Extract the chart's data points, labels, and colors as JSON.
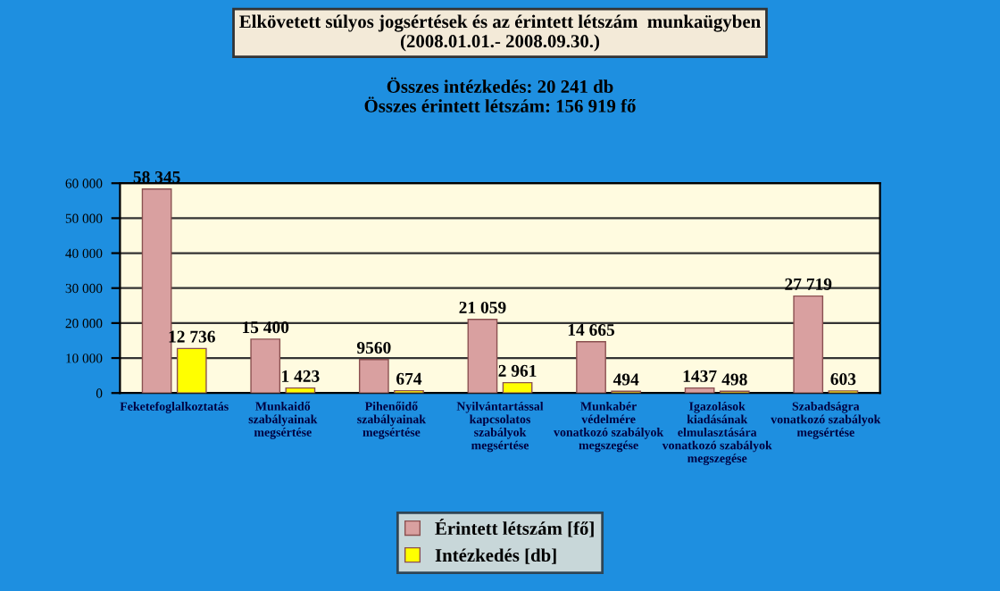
{
  "chart_data": {
    "type": "bar",
    "title": "Elkövetett súlyos jogsértések és az érintett létszám  munkaügyben\n(2008.01.01.- 2008.09.30.)",
    "subtitle": "Összes intézkedés: 20 241 db\nÖsszes érintett létszám: 156 919 fő",
    "categories": [
      "Feketefoglalkoztatás",
      "Munkaidő\nszabályainak\nmegsértése",
      "Pihenőidő\nszabályainak\nmegsértése",
      "Nyilvántartással\nkapcsolatos\nszabályok\nmegsértése",
      "Munkabér\nvédelmére\nvonatkozó szabályok\nmegszegése",
      "Igazolások\nkiadásának\nelmulasztására\nvonatkozó szabályok\nmegszegése",
      "Szabadságra\nvonatkozó szabályok\nmegsértése"
    ],
    "series": [
      {
        "name": "Érintett létszám [fő]",
        "color": "#d9a0a0",
        "values": [
          58345,
          15400,
          9560,
          21059,
          14665,
          1437,
          27719
        ],
        "value_labels": [
          "58 345",
          "15 400",
          "9560",
          "21 059",
          "14 665",
          "1437",
          "27 719"
        ]
      },
      {
        "name": "Intézkedés [db]",
        "color": "#ffff00",
        "values": [
          12736,
          1423,
          674,
          2961,
          494,
          498,
          603
        ],
        "value_labels": [
          "12 736",
          "1 423",
          "674",
          "2 961",
          "494",
          "498",
          "603"
        ]
      }
    ],
    "ylim": [
      0,
      60000
    ],
    "yticks": [
      0,
      {
        "value": 10000,
        "label": "10 000"
      },
      {
        "value": 20000,
        "label": "20 000"
      },
      {
        "value": 30000,
        "label": "30 000"
      },
      {
        "value": 40000,
        "label": "40 000"
      },
      {
        "value": 50000,
        "label": "50 000"
      },
      {
        "value": 60000,
        "label": "60 000"
      }
    ],
    "grid": "y",
    "legend": "bottom"
  }
}
